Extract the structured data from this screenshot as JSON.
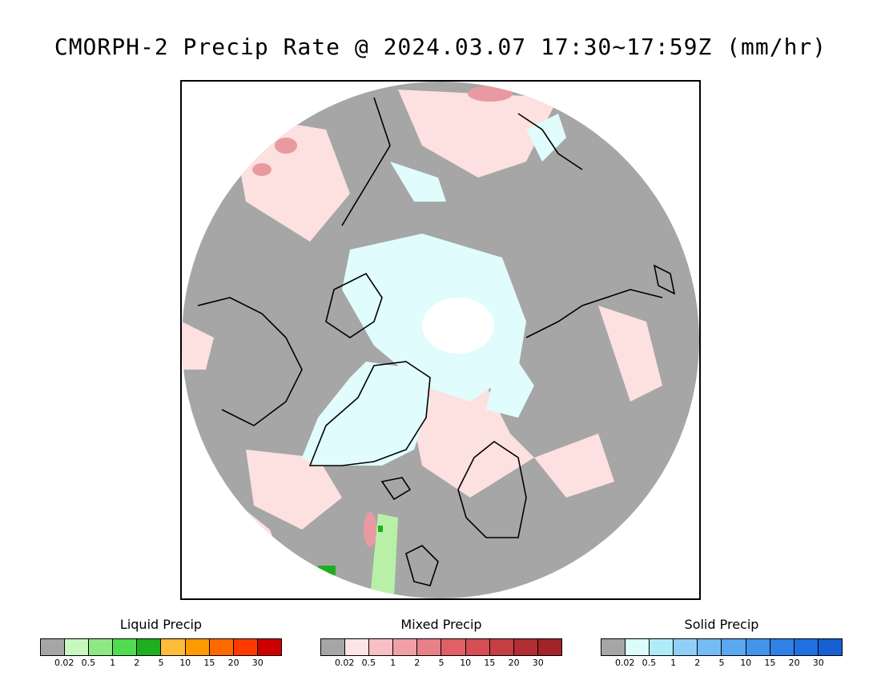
{
  "title": "CMORPH-2 Precip Rate @ 2024.03.07 17:30~17:59Z (mm/hr)",
  "colors": {
    "no_precip": "#a6a6a6",
    "ocean_outside": "#ffffff",
    "coast": "#000000",
    "mixed_light": "#fde0e0",
    "snow_light": "#e0fcfc",
    "snow_white": "#ffffff",
    "liquid_light": "#b8f0a8"
  },
  "legends": [
    {
      "title": "Liquid Precip",
      "colors": [
        "#a6a6a6",
        "#c8f7c0",
        "#8fe886",
        "#4fdc4f",
        "#1fae1f",
        "#ffbb3a",
        "#ff9a00",
        "#ff6a00",
        "#ff3a00",
        "#cc0000"
      ],
      "ticks": [
        "0.02",
        "0.5",
        "1",
        "2",
        "5",
        "10",
        "15",
        "20",
        "30"
      ]
    },
    {
      "title": "Mixed Precip",
      "colors": [
        "#a6a6a6",
        "#fde4e6",
        "#f8c0c4",
        "#f0a0a6",
        "#e88088",
        "#e06066",
        "#d44e54",
        "#c43e44",
        "#b02e34",
        "#a02428"
      ],
      "ticks": [
        "0.02",
        "0.5",
        "1",
        "2",
        "5",
        "10",
        "15",
        "20",
        "30"
      ]
    },
    {
      "title": "Solid Precip",
      "colors": [
        "#a6a6a6",
        "#dcfcfc",
        "#b0ecf8",
        "#90d0f8",
        "#74bcf4",
        "#5aa8f0",
        "#4494ea",
        "#3080e6",
        "#2070e0",
        "#1660d4"
      ],
      "ticks": [
        "0.02",
        "0.5",
        "1",
        "2",
        "5",
        "10",
        "15",
        "20",
        "30"
      ]
    }
  ]
}
